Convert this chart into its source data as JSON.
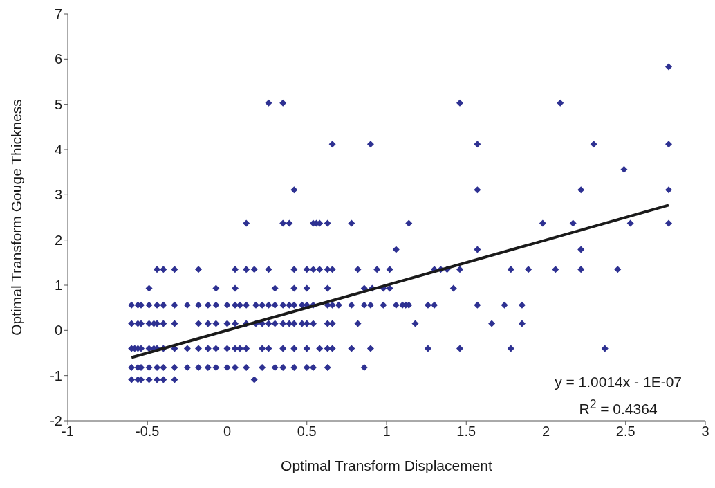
{
  "chart_data": {
    "type": "scatter",
    "xlabel": "Optimal Transform Displacement",
    "ylabel": "Optimal Transform Gouge Thickness",
    "xlim": [
      -1,
      3
    ],
    "xticks": [
      -1,
      -0.5,
      0,
      0.5,
      1,
      1.5,
      2,
      2.5,
      3
    ],
    "ylim": [
      -2,
      7
    ],
    "yticks": [
      -2,
      -1,
      0,
      1,
      2,
      3,
      4,
      5,
      6,
      7
    ],
    "grid": false,
    "marker": "diamond",
    "annotations": [
      "y = 1.0014x - 1E-07",
      "R$^{2}$ = 0.4364"
    ],
    "series": [
      {
        "color": "#2e3192",
        "x": [
          -0.6,
          -0.56,
          -0.54,
          -0.49,
          -0.44,
          -0.4,
          -0.33,
          0.17,
          -0.6,
          -0.56,
          -0.54,
          -0.49,
          -0.44,
          -0.4,
          -0.33,
          -0.25,
          -0.18,
          -0.12,
          -0.07,
          0,
          0.05,
          0.12,
          0.22,
          0.3,
          0.35,
          0.42,
          0.5,
          0.54,
          0.63,
          0.86,
          -0.6,
          -0.58,
          -0.56,
          -0.54,
          -0.49,
          -0.46,
          -0.44,
          -0.4,
          -0.33,
          -0.25,
          -0.18,
          -0.12,
          -0.07,
          0,
          0.05,
          0.08,
          0.12,
          0.22,
          0.26,
          0.35,
          0.42,
          0.5,
          0.58,
          0.63,
          0.66,
          0.78,
          0.9,
          1.26,
          1.46,
          1.78,
          2.37,
          -0.6,
          -0.56,
          -0.54,
          -0.49,
          -0.46,
          -0.44,
          -0.4,
          -0.33,
          -0.18,
          -0.12,
          -0.07,
          0,
          0.05,
          0.12,
          0.18,
          0.22,
          0.26,
          0.3,
          0.35,
          0.39,
          0.42,
          0.47,
          0.5,
          0.54,
          0.63,
          0.66,
          0.82,
          1.18,
          1.66,
          1.85,
          -0.6,
          -0.56,
          -0.54,
          -0.49,
          -0.44,
          -0.4,
          -0.33,
          -0.25,
          -0.18,
          -0.12,
          -0.07,
          0,
          0.05,
          0.08,
          0.12,
          0.18,
          0.22,
          0.26,
          0.3,
          0.35,
          0.39,
          0.42,
          0.47,
          0.5,
          0.54,
          0.63,
          0.66,
          0.7,
          0.78,
          0.86,
          0.9,
          0.98,
          1.06,
          1.1,
          1.12,
          1.14,
          1.26,
          1.3,
          1.57,
          1.74,
          1.85,
          -0.49,
          -0.07,
          0.05,
          0.3,
          0.42,
          0.5,
          0.63,
          0.86,
          0.91,
          0.98,
          1.02,
          1.42,
          -0.44,
          -0.4,
          -0.33,
          -0.18,
          0.05,
          0.12,
          0.17,
          0.26,
          0.42,
          0.5,
          0.54,
          0.58,
          0.63,
          0.66,
          0.82,
          0.94,
          1.02,
          1.3,
          1.34,
          1.38,
          1.46,
          1.78,
          1.89,
          2.06,
          2.22,
          2.45,
          1.06,
          1.57,
          2.22,
          0.12,
          0.35,
          0.39,
          0.54,
          0.56,
          0.58,
          0.63,
          0.78,
          1.14,
          1.98,
          2.17,
          2.53,
          2.77,
          0.42,
          1.57,
          2.22,
          2.77,
          2.49,
          0.66,
          0.9,
          1.57,
          2.3,
          2.77,
          0.26,
          0.35,
          1.46,
          2.09,
          2.77
        ],
        "values": [
          -1.09,
          -1.09,
          -1.09,
          -1.09,
          -1.09,
          -1.09,
          -1.09,
          -1.09,
          -0.82,
          -0.82,
          -0.82,
          -0.82,
          -0.82,
          -0.82,
          -0.82,
          -0.82,
          -0.82,
          -0.82,
          -0.82,
          -0.82,
          -0.82,
          -0.82,
          -0.82,
          -0.82,
          -0.82,
          -0.82,
          -0.82,
          -0.82,
          -0.82,
          -0.82,
          -0.4,
          -0.4,
          -0.4,
          -0.4,
          -0.4,
          -0.4,
          -0.4,
          -0.4,
          -0.4,
          -0.4,
          -0.4,
          -0.4,
          -0.4,
          -0.4,
          -0.4,
          -0.4,
          -0.4,
          -0.4,
          -0.4,
          -0.4,
          -0.4,
          -0.4,
          -0.4,
          -0.4,
          -0.4,
          -0.4,
          -0.4,
          -0.4,
          -0.4,
          -0.4,
          -0.4,
          0.15,
          0.15,
          0.15,
          0.15,
          0.15,
          0.15,
          0.15,
          0.15,
          0.15,
          0.15,
          0.15,
          0.15,
          0.15,
          0.15,
          0.15,
          0.15,
          0.15,
          0.15,
          0.15,
          0.15,
          0.15,
          0.15,
          0.15,
          0.15,
          0.15,
          0.15,
          0.15,
          0.15,
          0.15,
          0.15,
          0.56,
          0.56,
          0.56,
          0.56,
          0.56,
          0.56,
          0.56,
          0.56,
          0.56,
          0.56,
          0.56,
          0.56,
          0.56,
          0.56,
          0.56,
          0.56,
          0.56,
          0.56,
          0.56,
          0.56,
          0.56,
          0.56,
          0.56,
          0.56,
          0.56,
          0.56,
          0.56,
          0.56,
          0.56,
          0.56,
          0.56,
          0.56,
          0.56,
          0.56,
          0.56,
          0.56,
          0.56,
          0.56,
          0.56,
          0.56,
          0.56,
          0.93,
          0.93,
          0.93,
          0.93,
          0.93,
          0.93,
          0.93,
          0.93,
          0.93,
          0.93,
          0.93,
          0.93,
          1.35,
          1.35,
          1.35,
          1.35,
          1.35,
          1.35,
          1.35,
          1.35,
          1.35,
          1.35,
          1.35,
          1.35,
          1.35,
          1.35,
          1.35,
          1.35,
          1.35,
          1.35,
          1.35,
          1.35,
          1.35,
          1.35,
          1.35,
          1.35,
          1.35,
          1.35,
          1.79,
          1.79,
          1.79,
          2.37,
          2.37,
          2.37,
          2.37,
          2.37,
          2.37,
          2.37,
          2.37,
          2.37,
          2.37,
          2.37,
          2.37,
          2.37,
          3.11,
          3.11,
          3.11,
          3.11,
          3.56,
          4.12,
          4.12,
          4.12,
          4.12,
          4.12,
          5.03,
          5.03,
          5.03,
          5.03,
          5.83
        ]
      },
      {
        "type": "line",
        "color": "#1a1a1a",
        "marker": "none",
        "line_style": "solid",
        "x": [
          -0.6,
          2.77
        ],
        "values": [
          -0.6,
          2.77
        ]
      }
    ]
  }
}
